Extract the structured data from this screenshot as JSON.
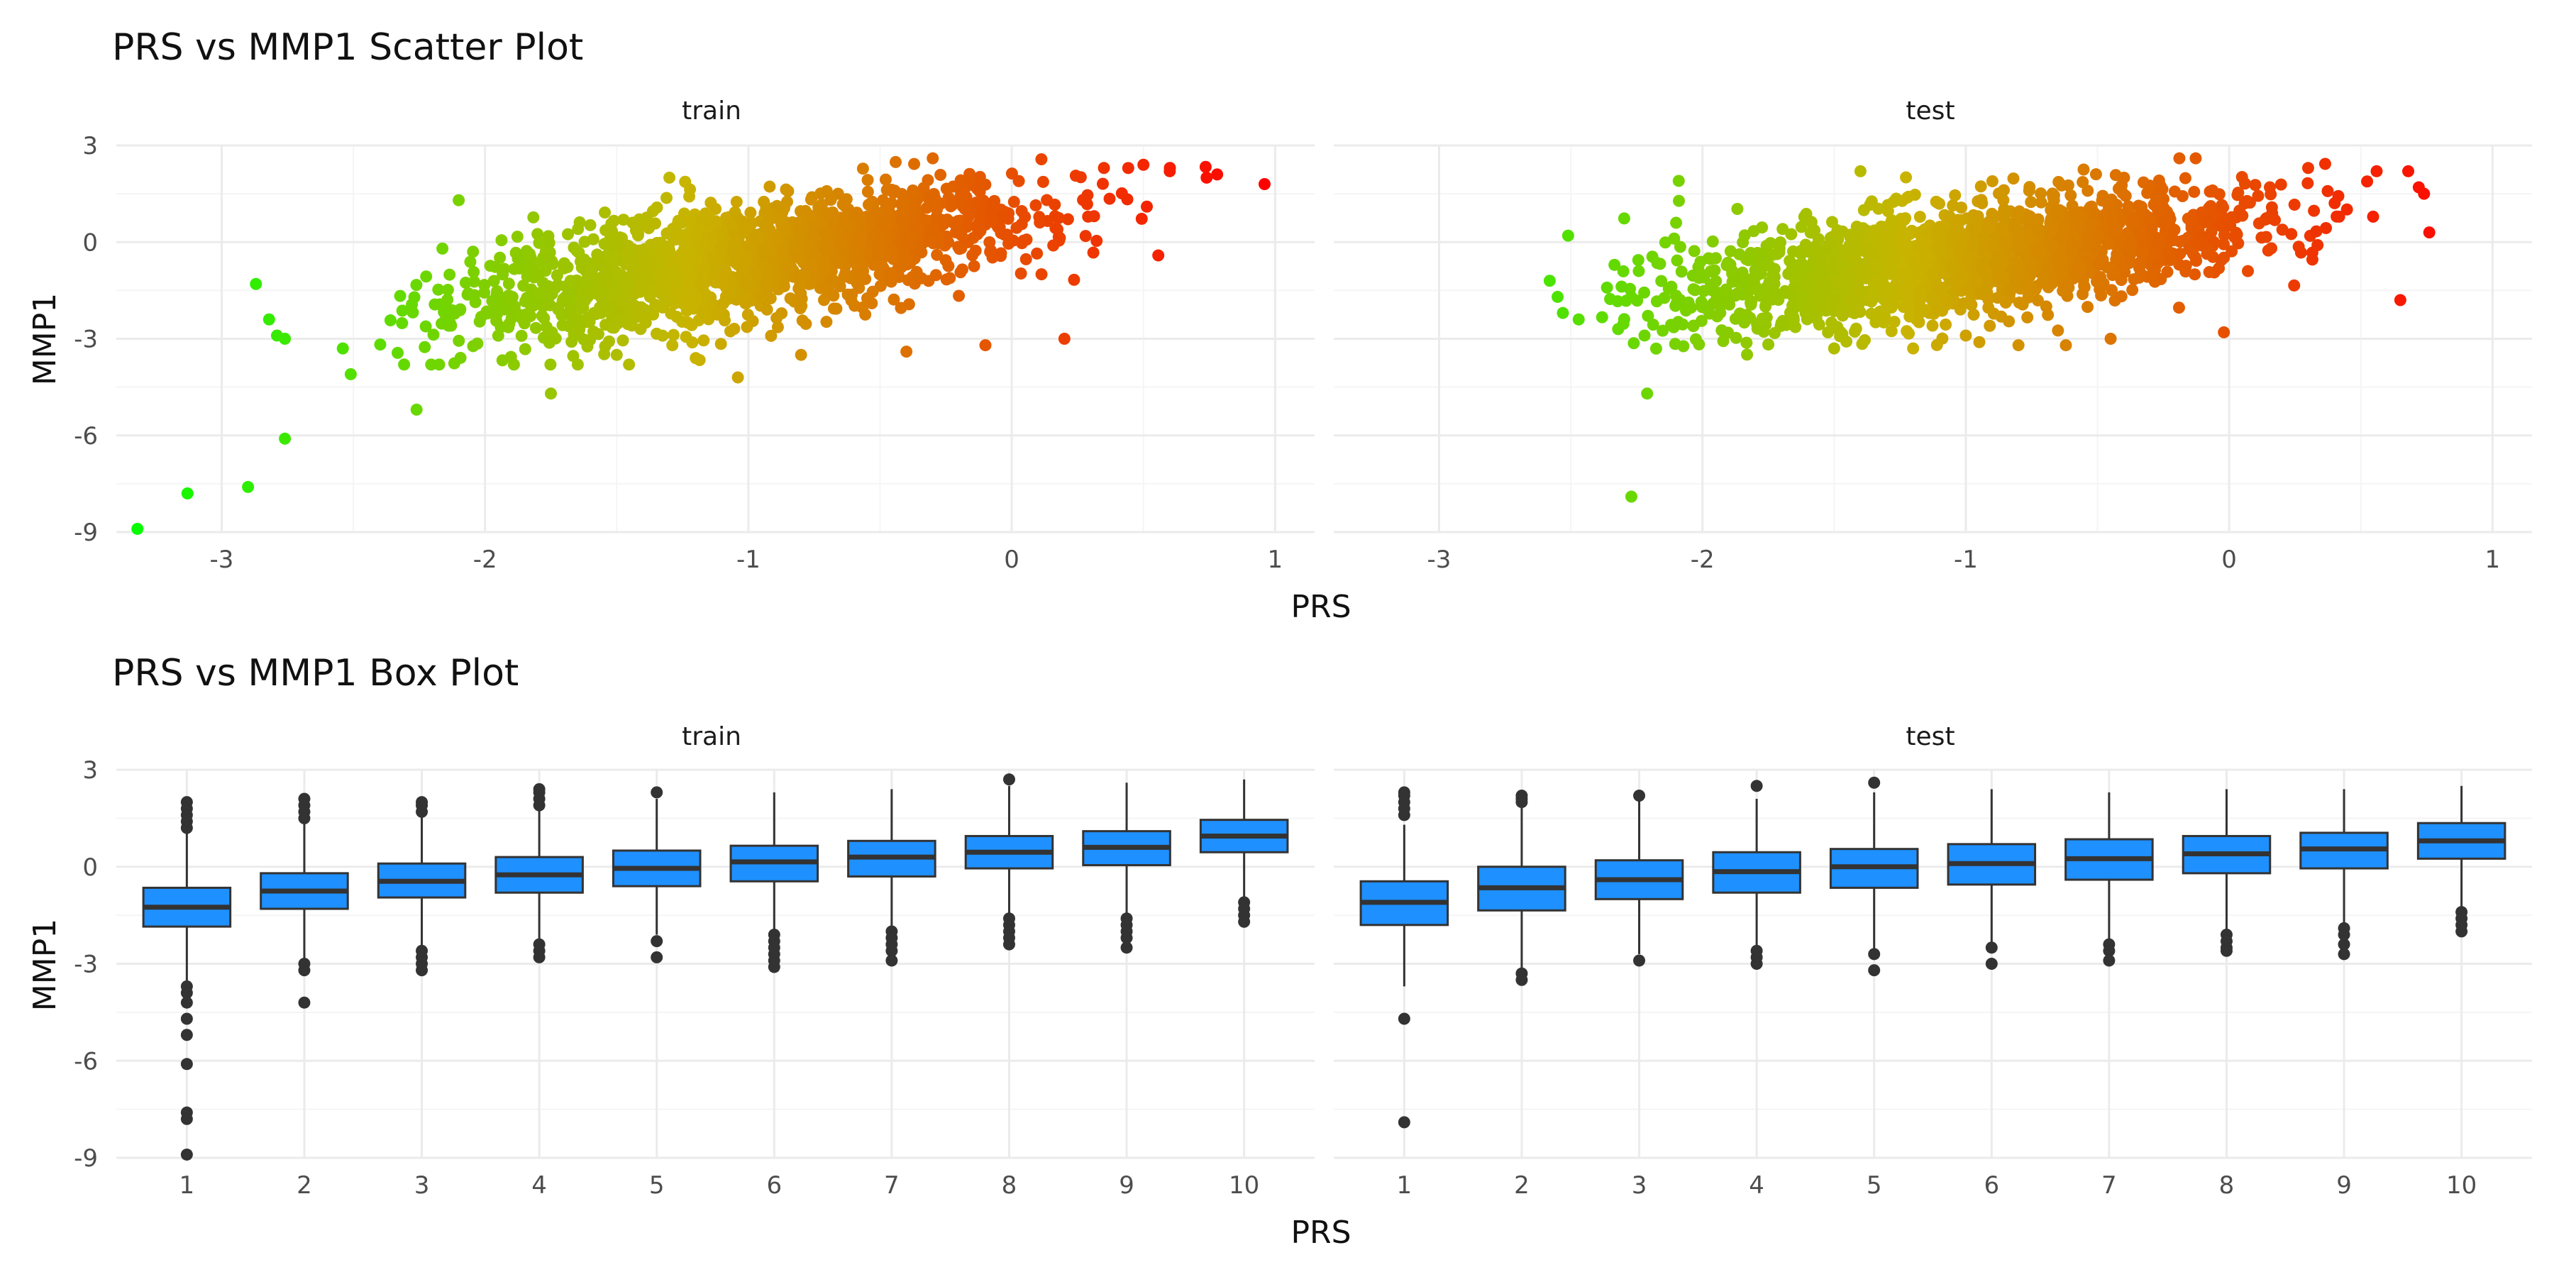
{
  "colors": {
    "grid_major": "#ebebeb",
    "grid_minor": "#f5f5f5",
    "low_prs": "#00ff00",
    "high_prs": "#ff0000",
    "box_fill": "#1e90ff",
    "box_line": "#333333"
  },
  "chart_data": [
    {
      "type": "scatter",
      "title": "PRS vs MMP1 Scatter Plot",
      "xlabel": "PRS",
      "ylabel": "MMP1",
      "facets": [
        "train",
        "test"
      ],
      "xlim": [
        -3.4,
        1.15
      ],
      "ylim": [
        -9.0,
        3.0
      ],
      "x_ticks": [
        -3,
        -2,
        -1,
        0,
        1
      ],
      "y_ticks": [
        -9,
        -6,
        -3,
        0,
        3
      ],
      "x_tick_labels": [
        "-3",
        "-2",
        "-1",
        "0",
        "1"
      ],
      "y_tick_labels": [
        "-9",
        "-6",
        "-3",
        "0",
        "3"
      ],
      "color_scale": "gradient green (low PRS) to red (high PRS)",
      "panels": [
        {
          "name": "train",
          "x": [
            -3.32,
            -3.13,
            -2.9,
            -2.76,
            -2.87,
            -2.82,
            -2.79,
            -2.76,
            -2.26,
            -2.54,
            -2.51,
            -1.75,
            -1.04,
            0.96,
            0.78,
            0.74,
            0.6,
            0.5,
            0.35,
            -0.3,
            -1.3,
            -2.1,
            -1.5,
            -1.2,
            -0.8,
            -0.4,
            -0.1,
            0.2
          ],
          "y": [
            -8.9,
            -7.8,
            -7.6,
            -6.1,
            -1.3,
            -2.4,
            -2.9,
            -3.0,
            -5.2,
            -3.3,
            -4.1,
            -4.7,
            -4.2,
            1.8,
            2.1,
            2.0,
            2.2,
            2.4,
            2.3,
            2.6,
            2.0,
            1.3,
            -3.5,
            -3.6,
            -3.5,
            -3.4,
            -3.2,
            -3.0
          ],
          "trend": {
            "slope": 1.3,
            "intercept": 0.7,
            "sd": 0.85
          }
        },
        {
          "name": "test",
          "x": [
            -2.27,
            -2.21,
            -2.09,
            -2.1,
            -2.55,
            -2.51,
            -2.58,
            -2.53,
            -2.47,
            -2.32,
            -2.22,
            0.76,
            0.65,
            0.72,
            0.74,
            0.68,
            0.56,
            0.3,
            -0.02,
            -0.45,
            -0.62,
            -1.0,
            -1.4,
            -1.5,
            -1.2,
            -0.8
          ],
          "y": [
            -7.9,
            -4.7,
            1.9,
            0.6,
            -1.7,
            0.2,
            -1.2,
            -2.2,
            -2.4,
            -2.7,
            -2.9,
            0.3,
            -1.8,
            1.7,
            1.5,
            2.2,
            2.2,
            2.3,
            -2.8,
            -3.0,
            -3.2,
            -2.9,
            2.2,
            -3.3,
            -3.3,
            -3.2
          ],
          "trend": {
            "slope": 1.1,
            "intercept": 0.55,
            "sd": 0.85
          }
        }
      ]
    },
    {
      "type": "box",
      "title": "PRS vs MMP1 Box Plot",
      "xlabel": "PRS",
      "ylabel": "MMP1",
      "facets": [
        "train",
        "test"
      ],
      "categories": [
        "1",
        "2",
        "3",
        "4",
        "5",
        "6",
        "7",
        "8",
        "9",
        "10"
      ],
      "ylim": [
        -9.0,
        3.0
      ],
      "y_ticks": [
        -9,
        -6,
        -3,
        0,
        3
      ],
      "y_tick_labels": [
        "-9",
        "-6",
        "-3",
        "0",
        "3"
      ],
      "panels": [
        {
          "name": "train",
          "boxes": [
            {
              "category": "1",
              "whisker_low": -3.6,
              "q1": -1.85,
              "median": -1.25,
              "q3": -0.65,
              "whisker_high": 1.1,
              "outliers": [
                2.0,
                1.8,
                1.6,
                1.4,
                1.2,
                -3.7,
                -3.9,
                -4.2,
                -4.7,
                -5.2,
                -6.1,
                -7.6,
                -7.8,
                -8.9
              ]
            },
            {
              "category": "2",
              "whisker_low": -2.9,
              "q1": -1.3,
              "median": -0.75,
              "q3": -0.2,
              "whisker_high": 1.4,
              "outliers": [
                2.1,
                1.9,
                1.7,
                1.5,
                -3.0,
                -3.2,
                -4.2
              ]
            },
            {
              "category": "3",
              "whisker_low": -2.5,
              "q1": -0.95,
              "median": -0.45,
              "q3": 0.1,
              "whisker_high": 1.6,
              "outliers": [
                2.0,
                1.9,
                1.7,
                -2.6,
                -2.8,
                -3.0,
                -3.2
              ]
            },
            {
              "category": "4",
              "whisker_low": -2.3,
              "q1": -0.8,
              "median": -0.25,
              "q3": 0.3,
              "whisker_high": 1.8,
              "outliers": [
                2.4,
                2.3,
                2.1,
                1.9,
                -2.4,
                -2.6,
                -2.8
              ]
            },
            {
              "category": "5",
              "whisker_low": -2.1,
              "q1": -0.6,
              "median": -0.05,
              "q3": 0.5,
              "whisker_high": 2.1,
              "outliers": [
                2.3,
                -2.3,
                -2.8
              ]
            },
            {
              "category": "6",
              "whisker_low": -2.0,
              "q1": -0.45,
              "median": 0.15,
              "q3": 0.65,
              "whisker_high": 2.3,
              "outliers": [
                -2.1,
                -2.3,
                -2.5,
                -2.7,
                -2.9,
                -3.1
              ]
            },
            {
              "category": "7",
              "whisker_low": -1.9,
              "q1": -0.3,
              "median": 0.3,
              "q3": 0.8,
              "whisker_high": 2.4,
              "outliers": [
                -2.0,
                -2.2,
                -2.4,
                -2.6,
                -2.9
              ]
            },
            {
              "category": "8",
              "whisker_low": -1.5,
              "q1": -0.05,
              "median": 0.45,
              "q3": 0.95,
              "whisker_high": 2.5,
              "outliers": [
                2.7,
                -1.6,
                -1.8,
                -2.0,
                -2.2,
                -2.4
              ]
            },
            {
              "category": "9",
              "whisker_low": -1.5,
              "q1": 0.05,
              "median": 0.6,
              "q3": 1.1,
              "whisker_high": 2.6,
              "outliers": [
                -1.6,
                -1.8,
                -2.0,
                -2.2,
                -2.5
              ]
            },
            {
              "category": "10",
              "whisker_low": -1.0,
              "q1": 0.45,
              "median": 0.95,
              "q3": 1.45,
              "whisker_high": 2.7,
              "outliers": [
                -1.1,
                -1.3,
                -1.5,
                -1.7
              ]
            }
          ]
        },
        {
          "name": "test",
          "boxes": [
            {
              "category": "1",
              "whisker_low": -3.7,
              "q1": -1.8,
              "median": -1.1,
              "q3": -0.45,
              "whisker_high": 1.3,
              "outliers": [
                2.3,
                2.2,
                2.0,
                1.8,
                1.6,
                -4.7,
                -7.9
              ]
            },
            {
              "category": "2",
              "whisker_low": -3.2,
              "q1": -1.35,
              "median": -0.65,
              "q3": 0.0,
              "whisker_high": 1.9,
              "outliers": [
                2.2,
                2.1,
                2.0,
                -3.3,
                -3.5
              ]
            },
            {
              "category": "3",
              "whisker_low": -2.7,
              "q1": -1.0,
              "median": -0.4,
              "q3": 0.2,
              "whisker_high": 2.1,
              "outliers": [
                2.2,
                -2.9
              ]
            },
            {
              "category": "4",
              "whisker_low": -2.5,
              "q1": -0.8,
              "median": -0.15,
              "q3": 0.45,
              "whisker_high": 2.1,
              "outliers": [
                2.5,
                -2.6,
                -2.8,
                -3.0
              ]
            },
            {
              "category": "5",
              "whisker_low": -2.6,
              "q1": -0.65,
              "median": 0.0,
              "q3": 0.55,
              "whisker_high": 2.3,
              "outliers": [
                2.6,
                -2.7,
                -3.2
              ]
            },
            {
              "category": "6",
              "whisker_low": -2.4,
              "q1": -0.55,
              "median": 0.1,
              "q3": 0.7,
              "whisker_high": 2.4,
              "outliers": [
                -2.5,
                -3.0
              ]
            },
            {
              "category": "7",
              "whisker_low": -2.3,
              "q1": -0.4,
              "median": 0.25,
              "q3": 0.85,
              "whisker_high": 2.3,
              "outliers": [
                -2.4,
                -2.6,
                -2.9
              ]
            },
            {
              "category": "8",
              "whisker_low": -2.0,
              "q1": -0.2,
              "median": 0.4,
              "q3": 0.95,
              "whisker_high": 2.4,
              "outliers": [
                -2.1,
                -2.3,
                -2.5,
                -2.6
              ]
            },
            {
              "category": "9",
              "whisker_low": -1.8,
              "q1": -0.05,
              "median": 0.55,
              "q3": 1.05,
              "whisker_high": 2.4,
              "outliers": [
                -1.9,
                -2.1,
                -2.4,
                -2.7
              ]
            },
            {
              "category": "10",
              "whisker_low": -1.3,
              "q1": 0.25,
              "median": 0.8,
              "q3": 1.35,
              "whisker_high": 2.5,
              "outliers": [
                -1.4,
                -1.6,
                -1.8,
                -2.0
              ]
            }
          ]
        }
      ]
    }
  ]
}
